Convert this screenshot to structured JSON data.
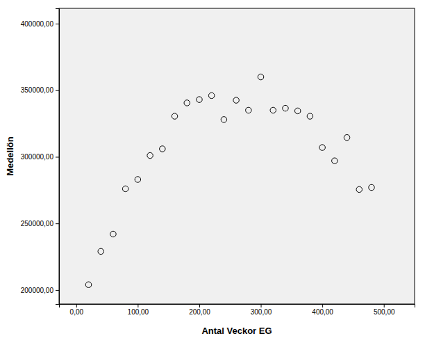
{
  "chart_data": {
    "type": "scatter",
    "x_label": "Antal Veckor EG",
    "y_label": "Medellön",
    "x": [
      20,
      40,
      60,
      80,
      100,
      120,
      140,
      160,
      180,
      200,
      220,
      240,
      260,
      280,
      300,
      320,
      340,
      360,
      380,
      400,
      420,
      440,
      460,
      480
    ],
    "values": [
      204000,
      229000,
      242000,
      276000,
      283000,
      301000,
      306000,
      330500,
      340500,
      343000,
      346000,
      328000,
      342500,
      335000,
      360000,
      335000,
      336500,
      334500,
      330500,
      307000,
      297000,
      314500,
      275500,
      277000
    ],
    "xlim": [
      -28,
      550
    ],
    "ylim": [
      189500,
      411500
    ],
    "xticks": [
      {
        "value": 0,
        "label": "0,00"
      },
      {
        "value": 100,
        "label": "100,00"
      },
      {
        "value": 200,
        "label": "200,00"
      },
      {
        "value": 300,
        "label": "300,00"
      },
      {
        "value": 400,
        "label": "400,00"
      },
      {
        "value": 500,
        "label": "500,00"
      }
    ],
    "yticks": [
      {
        "value": 200000,
        "label": "200000,00"
      },
      {
        "value": 250000,
        "label": "250000,00"
      },
      {
        "value": 300000,
        "label": "300000,00"
      },
      {
        "value": 350000,
        "label": "350000,00"
      },
      {
        "value": 400000,
        "label": "400000,00"
      }
    ],
    "marker": "circle",
    "color": "#000000",
    "grid": false
  }
}
